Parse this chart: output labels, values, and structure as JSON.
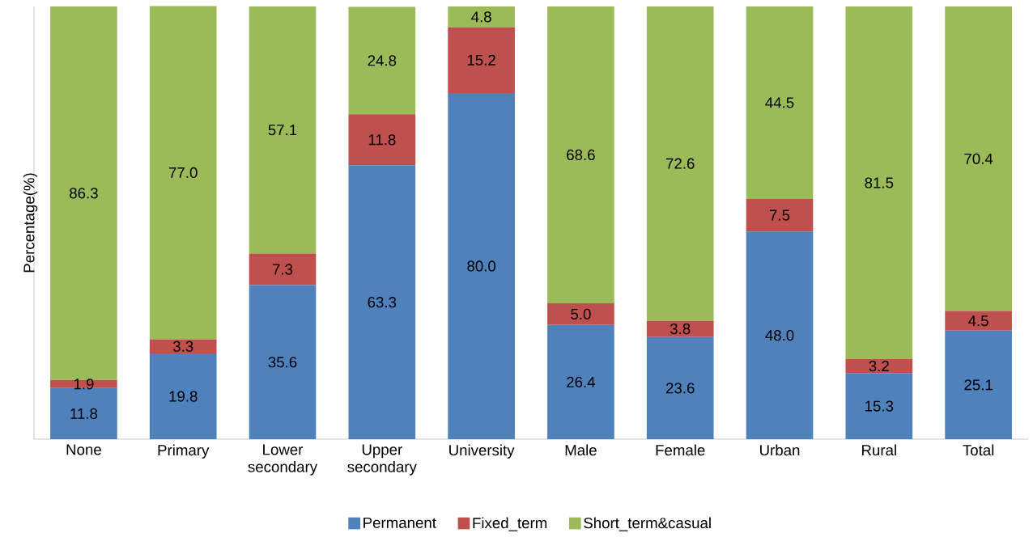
{
  "chart_data": {
    "type": "bar",
    "stacked": true,
    "ylabel": "Percentage(%)",
    "categories": [
      "None",
      "Primary",
      "Lower secondary",
      "Upper secondary",
      "University",
      "Male",
      "Female",
      "Urban",
      "Rural",
      "Total"
    ],
    "series": [
      {
        "name": "Permanent",
        "color": "#4f81bd",
        "values": [
          11.8,
          19.8,
          35.6,
          63.3,
          80.0,
          26.4,
          23.6,
          48.0,
          15.3,
          25.1
        ],
        "value_labels": [
          "11.8",
          "19.8",
          "35.6",
          "63.3",
          "80.0",
          "26.4",
          "23.6",
          "48.0",
          "15.3",
          "25.1"
        ]
      },
      {
        "name": "Fixed_term",
        "color": "#c0504d",
        "values": [
          1.9,
          3.3,
          7.3,
          11.8,
          15.2,
          5.0,
          3.8,
          7.5,
          3.2,
          4.5
        ],
        "value_labels": [
          "1.9",
          "3.3",
          "7.3",
          "11.8",
          "15.2",
          "5.0",
          "3.8",
          "7.5",
          "3.2",
          "4.5"
        ]
      },
      {
        "name": "Short_term&casual",
        "color": "#9bbb59",
        "values": [
          86.3,
          77.0,
          57.1,
          24.8,
          4.8,
          68.6,
          72.6,
          44.5,
          81.5,
          70.4
        ],
        "value_labels": [
          "86.3",
          "77.0",
          "57.1",
          "24.8",
          "4.8",
          "68.6",
          "72.6",
          "44.5",
          "81.5",
          "70.4"
        ]
      }
    ],
    "ylim": [
      0,
      100
    ],
    "legend": "bottom"
  }
}
